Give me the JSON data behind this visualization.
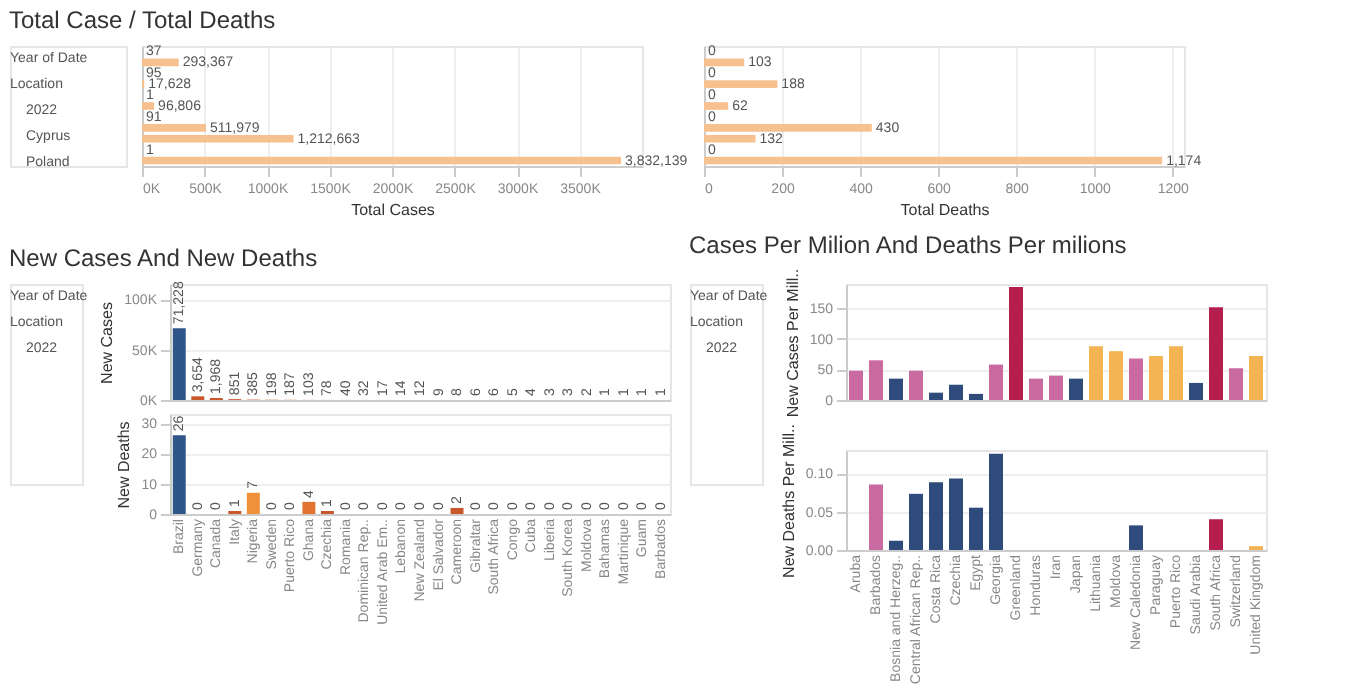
{
  "chart_data": [
    {
      "type": "bar",
      "title": "Total Case / Total Deaths",
      "orientation": "horizontal",
      "xlabel": "Total Cases",
      "annotations": [
        "Year of Date",
        "Location",
        "2022",
        "Cyprus",
        "Poland"
      ],
      "categories": [
        null,
        null,
        null,
        null,
        null,
        null,
        null,
        null,
        null,
        null,
        null
      ],
      "values": [
        37,
        293367,
        95,
        17628,
        1,
        96806,
        91,
        511979,
        1212663,
        1,
        3832139
      ],
      "value_labels": [
        "37",
        "293,367",
        "95",
        "17,628",
        "1",
        "96,806",
        "91",
        "511,979",
        "1,212,663",
        "1",
        "3,832,139"
      ],
      "color": "#f6c18e",
      "xlim": [
        0,
        4000000
      ],
      "xticks": [
        {
          "value": 0,
          "label": "0K"
        },
        {
          "value": 500000,
          "label": "500K"
        },
        {
          "value": 1000000,
          "label": "1000K"
        },
        {
          "value": 1500000,
          "label": "1500K"
        },
        {
          "value": 2000000,
          "label": "2000K"
        },
        {
          "value": 2500000,
          "label": "2500K"
        },
        {
          "value": 3000000,
          "label": "3000K"
        },
        {
          "value": 3500000,
          "label": "3500K"
        }
      ],
      "grid": "x",
      "tick_labels": "x"
    },
    {
      "type": "bar",
      "orientation": "horizontal",
      "xlabel": "Total Deaths",
      "categories": [
        null,
        null,
        null,
        null,
        null,
        null,
        null,
        null,
        null,
        null,
        null
      ],
      "values": [
        0,
        103,
        0,
        188,
        0,
        62,
        0,
        430,
        132,
        0,
        1174
      ],
      "value_labels": [
        "0",
        "103",
        "0",
        "188",
        "0",
        "62",
        "0",
        "430",
        "132",
        "0",
        "1,174"
      ],
      "color": "#f6c18e",
      "xlim": [
        0,
        1230
      ],
      "xticks": [
        0,
        200,
        400,
        600,
        800,
        1000,
        1200
      ],
      "grid": "x",
      "tick_labels": "x"
    },
    {
      "type": "bar",
      "title": "New Cases And New Deaths",
      "ylabel": "New Cases",
      "annotations": [
        "Year of Date",
        "Location",
        "2022"
      ],
      "categories": [
        "Brazil",
        "Germany",
        "Canada",
        "Italy",
        "Nigeria",
        "Sweden",
        "Puerto Rico",
        "Ghana",
        "Czechia",
        "Romania",
        "Dominican Rep..",
        "United Arab Em..",
        "Lebanon",
        "New Zealand",
        "El Salvador",
        "Cameroon",
        "Gibraltar",
        "South Africa",
        "Congo",
        "Cuba",
        "Liberia",
        "South Korea",
        "Moldova",
        "Bahamas",
        "Martinique",
        "Guam",
        "Barbados"
      ],
      "values": [
        71228,
        3654,
        1968,
        851,
        385,
        198,
        187,
        103,
        78,
        40,
        32,
        17,
        14,
        12,
        9,
        8,
        6,
        6,
        5,
        4,
        3,
        3,
        2,
        1,
        1,
        1,
        1
      ],
      "value_labels": [
        "71,228",
        "3,654",
        "1,968",
        "851",
        "385",
        "198",
        "187",
        "103",
        "78",
        "40",
        "32",
        "17",
        "14",
        "12",
        "9",
        "8",
        "6",
        "6",
        "5",
        "4",
        "3",
        "3",
        "2",
        "1",
        "1",
        "1",
        "1"
      ],
      "colors": [
        "#2f5688",
        "#c8572b",
        "#c8572b",
        "#c8572b",
        "#c8572b",
        "#c8572b",
        "#c8572b",
        "#c8572b",
        "#c8572b",
        "#c8572b",
        "#c8572b",
        "#c8572b",
        "#c8572b",
        "#c8572b",
        "#c8572b",
        "#c8572b",
        "#c8572b",
        "#c8572b",
        "#c8572b",
        "#c8572b",
        "#c8572b",
        "#c8572b",
        "#c8572b",
        "#c8572b",
        "#c8572b",
        "#c8572b",
        "#c8572b"
      ],
      "ylim": [
        0,
        115000
      ],
      "yticks": [
        {
          "value": 0,
          "label": "0K"
        },
        {
          "value": 50000,
          "label": "50K"
        },
        {
          "value": 100000,
          "label": "100K"
        }
      ],
      "grid": "y",
      "tick_labels": "y"
    },
    {
      "type": "bar",
      "ylabel": "New Deaths",
      "categories": [
        "Brazil",
        "Germany",
        "Canada",
        "Italy",
        "Nigeria",
        "Sweden",
        "Puerto Rico",
        "Ghana",
        "Czechia",
        "Romania",
        "Dominican Rep..",
        "United Arab Em..",
        "Lebanon",
        "New Zealand",
        "El Salvador",
        "Cameroon",
        "Gibraltar",
        "South Africa",
        "Congo",
        "Cuba",
        "Liberia",
        "South Korea",
        "Moldova",
        "Bahamas",
        "Martinique",
        "Guam",
        "Barbados"
      ],
      "values": [
        26,
        0,
        0,
        1,
        7,
        0,
        0,
        4,
        1,
        0,
        0,
        0,
        0,
        0,
        0,
        2,
        0,
        0,
        0,
        0,
        0,
        0,
        0,
        0,
        0,
        0,
        0
      ],
      "colors": [
        "#2f5688",
        "#c8572b",
        "#c8572b",
        "#c8572b",
        "#f0913a",
        "#c8572b",
        "#c8572b",
        "#e2742f",
        "#c8572b",
        "#c8572b",
        "#c8572b",
        "#c8572b",
        "#c8572b",
        "#c8572b",
        "#c8572b",
        "#c8572b",
        "#c8572b",
        "#c8572b",
        "#c8572b",
        "#c8572b",
        "#c8572b",
        "#c8572b",
        "#c8572b",
        "#c8572b",
        "#c8572b",
        "#c8572b",
        "#c8572b"
      ],
      "data_labels": true,
      "ylim": [
        0,
        33
      ],
      "yticks": [
        0,
        10,
        20,
        30
      ],
      "grid": "y"
    },
    {
      "type": "bar",
      "title": "Cases Per Milion And Deaths Per milions",
      "ylabel": "New Cases Per Mill..",
      "annotations": [
        "Year of Date",
        "Location",
        "2022"
      ],
      "categories": [
        "Aruba",
        "Barbados",
        "Bosnia and Herzeg..",
        "Central African Rep..",
        "Costa Rica",
        "Czechia",
        "Egypt",
        "Georgia",
        "Greenland",
        "Honduras",
        "Iran",
        "Japan",
        "Lithuania",
        "Moldova",
        "New Caledonia",
        "Paraguay",
        "Puerto Rico",
        "Saudi Arabia",
        "South Africa",
        "Switzerland",
        "United Kingdom"
      ],
      "values": [
        48,
        65,
        35,
        48,
        12,
        25,
        10,
        58,
        185,
        35,
        40,
        35,
        88,
        80,
        68,
        72,
        88,
        28,
        152,
        52,
        72
      ],
      "colors": [
        "#c96aa0",
        "#c96aa0",
        "#2f4b7c",
        "#c96aa0",
        "#2f4b7c",
        "#2f4b7c",
        "#2f4b7c",
        "#c96aa0",
        "#b51f50",
        "#c96aa0",
        "#c96aa0",
        "#2f4b7c",
        "#f5b454",
        "#f5b454",
        "#c96aa0",
        "#f5b454",
        "#f5b454",
        "#2f4b7c",
        "#b51f50",
        "#c96aa0",
        "#f5b454"
      ],
      "ylim": [
        0,
        190
      ],
      "yticks": [
        0,
        50,
        100,
        150
      ],
      "grid": "y",
      "tick_labels": "y"
    },
    {
      "type": "bar",
      "ylabel": "New Deaths Per Mill..",
      "categories": [
        "Aruba",
        "Barbados",
        "Bosnia and Herzeg..",
        "Central African Rep..",
        "Costa Rica",
        "Czechia",
        "Egypt",
        "Georgia",
        "Greenland",
        "Honduras",
        "Iran",
        "Japan",
        "Lithuania",
        "Moldova",
        "New Caledonia",
        "Paraguay",
        "Puerto Rico",
        "Saudi Arabia",
        "South Africa",
        "Switzerland",
        "United Kingdom"
      ],
      "values": [
        0,
        0.085,
        0.012,
        0.073,
        0.088,
        0.093,
        0.055,
        0.125,
        0,
        0,
        0,
        0,
        0,
        0,
        0.032,
        0,
        0,
        0,
        0.04,
        0,
        0.005
      ],
      "colors": [
        "#c96aa0",
        "#c96aa0",
        "#2f4b7c",
        "#2f4b7c",
        "#2f4b7c",
        "#2f4b7c",
        "#2f4b7c",
        "#2f4b7c",
        "#b51f50",
        "#c96aa0",
        "#c96aa0",
        "#2f4b7c",
        "#f5b454",
        "#f5b454",
        "#2f4b7c",
        "#f5b454",
        "#f5b454",
        "#2f4b7c",
        "#b51f50",
        "#c96aa0",
        "#f5b454"
      ],
      "ylim": [
        0,
        0.13
      ],
      "yticks": [
        {
          "value": 0,
          "label": "0.00"
        },
        {
          "value": 0.05,
          "label": "0.05"
        },
        {
          "value": 0.1,
          "label": "0.10"
        }
      ],
      "grid": "y"
    }
  ]
}
